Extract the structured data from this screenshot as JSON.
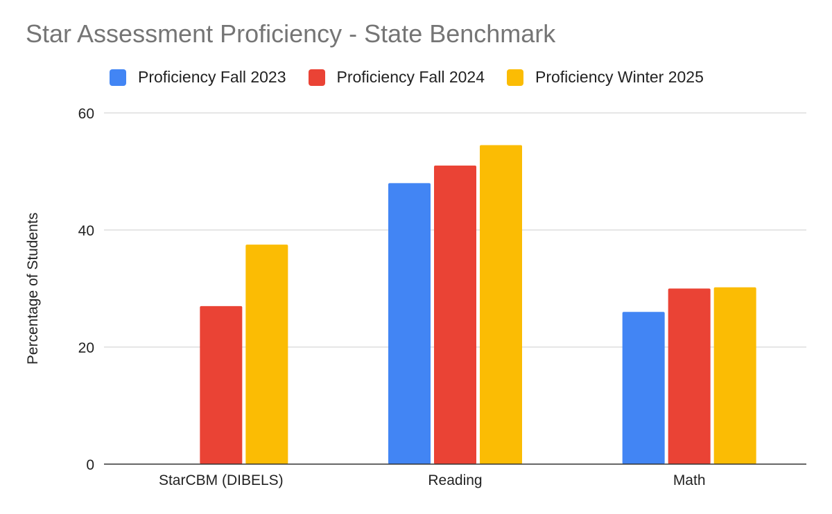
{
  "chart_data": {
    "type": "bar",
    "title": "Star Assessment Proficiency - State Benchmark",
    "xlabel": "",
    "ylabel": "Percentage of Students",
    "categories": [
      "StarCBM (DIBELS)",
      "Reading",
      "Math"
    ],
    "series": [
      {
        "name": "Proficiency Fall 2023",
        "color": "#4285F4",
        "values": [
          null,
          48,
          26
        ]
      },
      {
        "name": "Proficiency Fall 2024",
        "color": "#EA4335",
        "values": [
          27,
          51,
          30
        ]
      },
      {
        "name": "Proficiency Winter 2025",
        "color": "#FBBC04",
        "values": [
          37.5,
          54.5,
          30.2
        ]
      }
    ],
    "ylim": [
      0,
      60
    ],
    "yticks": [
      "0",
      "20",
      "40",
      "60"
    ],
    "grid": true,
    "legend_position": "top"
  }
}
